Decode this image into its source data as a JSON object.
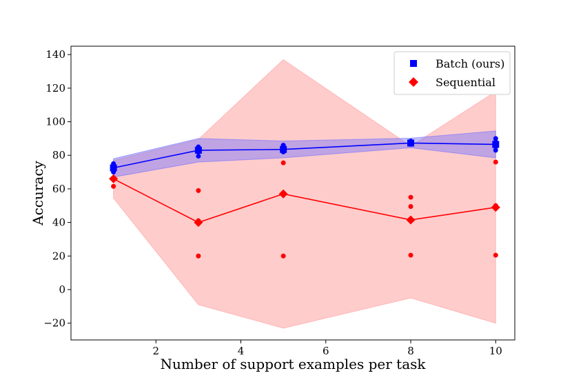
{
  "chart_data": {
    "type": "line",
    "title": "",
    "xlabel": "Number of support examples per task",
    "ylabel": "Accuracy",
    "xlim": [
      0.0,
      10.45
    ],
    "ylim": [
      -30,
      145
    ],
    "xticks": [
      2,
      4,
      6,
      8,
      10
    ],
    "yticks": [
      -20,
      0,
      20,
      40,
      60,
      80,
      100,
      120,
      140
    ],
    "xtick_labels": [
      "2",
      "4",
      "6",
      "8",
      "10"
    ],
    "ytick_labels": [
      "−20",
      "0",
      "20",
      "40",
      "60",
      "80",
      "100",
      "120",
      "140"
    ],
    "legend_position": "top-right",
    "series": [
      {
        "name": "Batch (ours)",
        "color": "#0000ff",
        "band_color": "#7070ff",
        "marker": "square",
        "x": [
          1,
          3,
          5,
          8,
          10
        ],
        "mean": [
          72.5,
          83,
          83.5,
          87.3,
          86.5
        ],
        "band_lower": [
          67,
          76,
          78.5,
          84.5,
          78.5
        ],
        "band_upper": [
          78,
          90,
          88.5,
          90.2,
          94.5
        ],
        "scatter": [
          {
            "x": 1,
            "y": 70
          },
          {
            "x": 1,
            "y": 71.5
          },
          {
            "x": 1,
            "y": 73
          },
          {
            "x": 1,
            "y": 74
          },
          {
            "x": 1,
            "y": 75
          },
          {
            "x": 3,
            "y": 79.5
          },
          {
            "x": 3,
            "y": 82
          },
          {
            "x": 3,
            "y": 83.5
          },
          {
            "x": 3,
            "y": 85
          },
          {
            "x": 5,
            "y": 82
          },
          {
            "x": 5,
            "y": 83
          },
          {
            "x": 5,
            "y": 84.5
          },
          {
            "x": 5,
            "y": 86
          },
          {
            "x": 8,
            "y": 86.5
          },
          {
            "x": 8,
            "y": 87.5
          },
          {
            "x": 8,
            "y": 88.5
          },
          {
            "x": 10,
            "y": 83
          },
          {
            "x": 10,
            "y": 85
          },
          {
            "x": 10,
            "y": 88
          },
          {
            "x": 10,
            "y": 90
          }
        ]
      },
      {
        "name": "Sequential",
        "color": "#ff0000",
        "band_color": "#ff9999",
        "marker": "diamond",
        "x": [
          1,
          3,
          5,
          8,
          10
        ],
        "mean": [
          66,
          40,
          57,
          41.5,
          49
        ],
        "band_lower": [
          54.5,
          -9,
          -23,
          -5,
          -20
        ],
        "band_upper": [
          77,
          89.5,
          137,
          85.5,
          118
        ],
        "scatter": [
          {
            "x": 1,
            "y": 61.5
          },
          {
            "x": 3,
            "y": 59
          },
          {
            "x": 3,
            "y": 41
          },
          {
            "x": 3,
            "y": 20
          },
          {
            "x": 5,
            "y": 75.5
          },
          {
            "x": 5,
            "y": 20
          },
          {
            "x": 8,
            "y": 55
          },
          {
            "x": 8,
            "y": 49.5
          },
          {
            "x": 8,
            "y": 20.5
          },
          {
            "x": 10,
            "y": 76
          },
          {
            "x": 10,
            "y": 50
          },
          {
            "x": 10,
            "y": 20.5
          }
        ]
      }
    ]
  }
}
